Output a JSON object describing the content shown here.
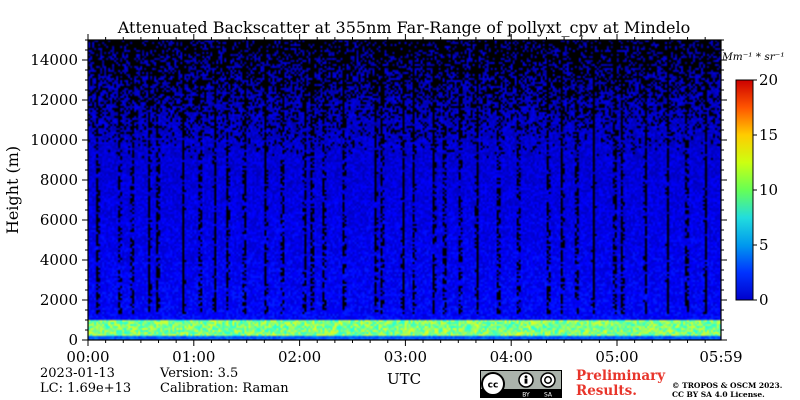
{
  "chart_data": {
    "type": "heatmap",
    "title": "Attenuated Backscatter at 355nm Far-Range of pollyxt_cpv at Mindelo",
    "xlabel": "UTC",
    "ylabel": "Height (m)",
    "x_tick_labels": [
      "00:00",
      "01:00",
      "02:00",
      "03:00",
      "04:00",
      "05:00",
      "05:59"
    ],
    "x_tick_values_hours": [
      0,
      1,
      2,
      3,
      4,
      5,
      5.983
    ],
    "xlim_hours": [
      0,
      5.983
    ],
    "y_tick_labels": [
      "0",
      "2000",
      "4000",
      "6000",
      "8000",
      "10000",
      "12000",
      "14000"
    ],
    "y_ticks": [
      0,
      2000,
      4000,
      6000,
      8000,
      10000,
      12000,
      14000
    ],
    "ylim": [
      0,
      15000
    ],
    "colorbar": {
      "unit_label": "Mm⁻¹ * sr⁻¹",
      "range": [
        0,
        20
      ],
      "tick_labels": [
        "0",
        "5",
        "10",
        "15",
        "20"
      ],
      "ticks": [
        0,
        5,
        10,
        15,
        20
      ],
      "colormap": "jet"
    },
    "features": {
      "aerosol_layer_top_m": 1000,
      "aerosol_layer_backscatter": 10,
      "surface_layer_m": 200,
      "free_troposphere_backscatter": 2,
      "dark_cloud_columns_hours": [
        0.09,
        0.3,
        0.42,
        0.58,
        0.66,
        0.9,
        1.06,
        1.2,
        1.32,
        1.48,
        1.68,
        1.84,
        2.05,
        2.12,
        2.23,
        2.42,
        2.72,
        2.78,
        2.98,
        3.08,
        3.27,
        3.37,
        3.52,
        3.68,
        3.88,
        4.07,
        4.35,
        4.48,
        4.62,
        4.78,
        4.98,
        5.05,
        5.27,
        5.48,
        5.66,
        5.84
      ]
    }
  },
  "footer": {
    "date": "2023-01-13",
    "lc": "LC: 1.69e+13",
    "version": "Version: 3.5",
    "calibration": "Calibration: Raman",
    "preliminary": "Preliminary Results.",
    "copyright_line1": "© TROPOS & OSCM 2023.",
    "copyright_line2": "CC BY SA 4.0 License.",
    "license_badge": [
      "BY",
      "SA"
    ]
  }
}
